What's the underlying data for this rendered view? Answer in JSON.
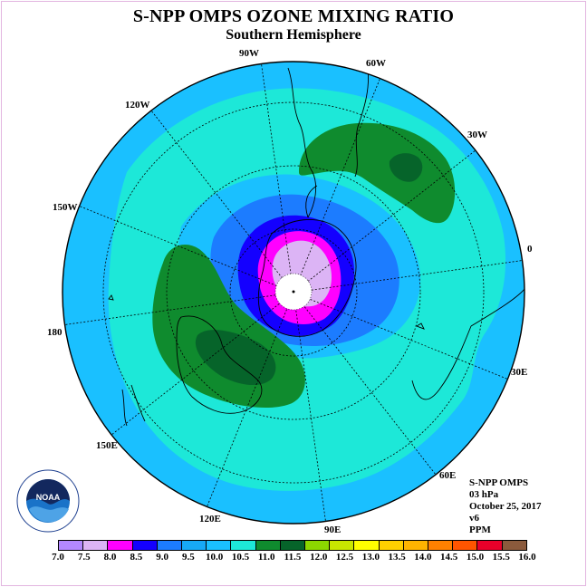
{
  "header": {
    "title": "S-NPP OMPS OZONE MIXING RATIO",
    "subtitle": "Southern Hemisphere"
  },
  "map": {
    "projection": "south polar stereographic",
    "longitude_labels": [
      "90W",
      "60W",
      "30W",
      "0",
      "30E",
      "60E",
      "90E",
      "120E",
      "150E",
      "180",
      "150W",
      "120W"
    ],
    "ocean_color": "#1aa6f0"
  },
  "info": {
    "instrument": "S-NPP OMPS",
    "level": "03 hPa",
    "date": "October 25, 2017",
    "version": "v6",
    "units": "PPM"
  },
  "colorbar": {
    "colors": [
      "#b388ff",
      "#dcb4f5",
      "#ff00ff",
      "#1400ff",
      "#1c7cff",
      "#17a9f5",
      "#1ac0ff",
      "#1de8d8",
      "#0f8b2e",
      "#06642a",
      "#8cd800",
      "#c8e600",
      "#ffff00",
      "#ffd000",
      "#ffb400",
      "#ff8000",
      "#ff5500",
      "#e8002a",
      "#8b5a3c"
    ],
    "tick_labels": [
      "7.0",
      "7.5",
      "8.0",
      "8.5",
      "9.0",
      "9.5",
      "10.0",
      "10.5",
      "11.0",
      "11.5",
      "12.0",
      "12.5",
      "13.0",
      "13.5",
      "14.0",
      "14.5",
      "15.0",
      "15.5",
      "16.0"
    ]
  },
  "logo": {
    "text": "NOAA",
    "ring_text": "NATIONAL OCEANIC AND ATMOSPHERIC ADMINISTRATION"
  }
}
